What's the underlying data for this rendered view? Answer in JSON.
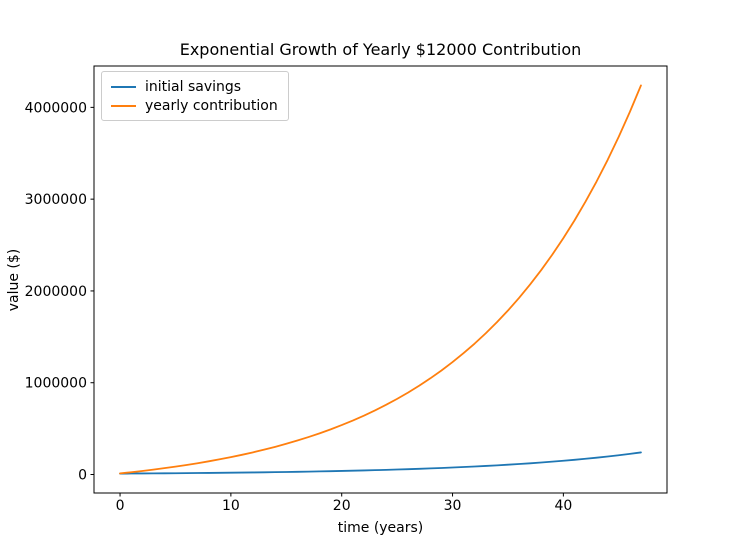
{
  "figure": {
    "background_color": "#ffffff",
    "axes_frame_color": "#000000",
    "tick_color": "#000000"
  },
  "chart_data": {
    "type": "line",
    "title": "Exponential Growth of Yearly $12000 Contribution",
    "xlabel": "time (years)",
    "ylabel": "value ($)",
    "grid": false,
    "legend_position": "upper left",
    "xlim": [
      -2.35,
      49.35
    ],
    "ylim": [
      -201462,
      4450703
    ],
    "xticks": [
      0,
      10,
      20,
      30,
      40
    ],
    "yticks": [
      0,
      1000000,
      2000000,
      3000000,
      4000000
    ],
    "x": [
      0,
      1,
      2,
      3,
      4,
      5,
      6,
      7,
      8,
      9,
      10,
      11,
      12,
      13,
      14,
      15,
      16,
      17,
      18,
      19,
      20,
      21,
      22,
      23,
      24,
      25,
      26,
      27,
      28,
      29,
      30,
      31,
      32,
      33,
      34,
      35,
      36,
      37,
      38,
      39,
      40,
      41,
      42,
      43,
      44,
      45,
      46,
      47
    ],
    "series": [
      {
        "name": "initial savings",
        "color": "#1f77b4",
        "values": [
          10000,
          10700,
          11449,
          12250,
          13108,
          14026,
          15007,
          16058,
          17182,
          18385,
          19672,
          21049,
          22522,
          24098,
          25785,
          27590,
          29522,
          31588,
          33799,
          36165,
          38697,
          41406,
          44304,
          47405,
          50724,
          54274,
          58074,
          62139,
          66488,
          71143,
          76123,
          81451,
          87153,
          93253,
          99781,
          106766,
          114239,
          122236,
          130793,
          139948,
          149745,
          160227,
          171443,
          183444,
          196285,
          210025,
          224726,
          240457
        ]
      },
      {
        "name": "yearly contribution",
        "color": "#ff7f0e",
        "values": [
          12000,
          24840,
          38579,
          53279,
          69009,
          85839,
          103848,
          123118,
          143736,
          165797,
          189403,
          214662,
          241688,
          270606,
          301548,
          334657,
          370083,
          407988,
          448548,
          491946,
          538382,
          588069,
          641234,
          698120,
          758989,
          824118,
          893806,
          968372,
          1048158,
          1133529,
          1224876,
          1322618,
          1427201,
          1539105,
          1658842,
          1786961,
          1924049,
          2070732,
          2227683,
          2395621,
          2575315,
          2767587,
          2973318,
          3193450,
          3428992,
          3681021,
          3950693,
          4239241
        ]
      }
    ]
  }
}
